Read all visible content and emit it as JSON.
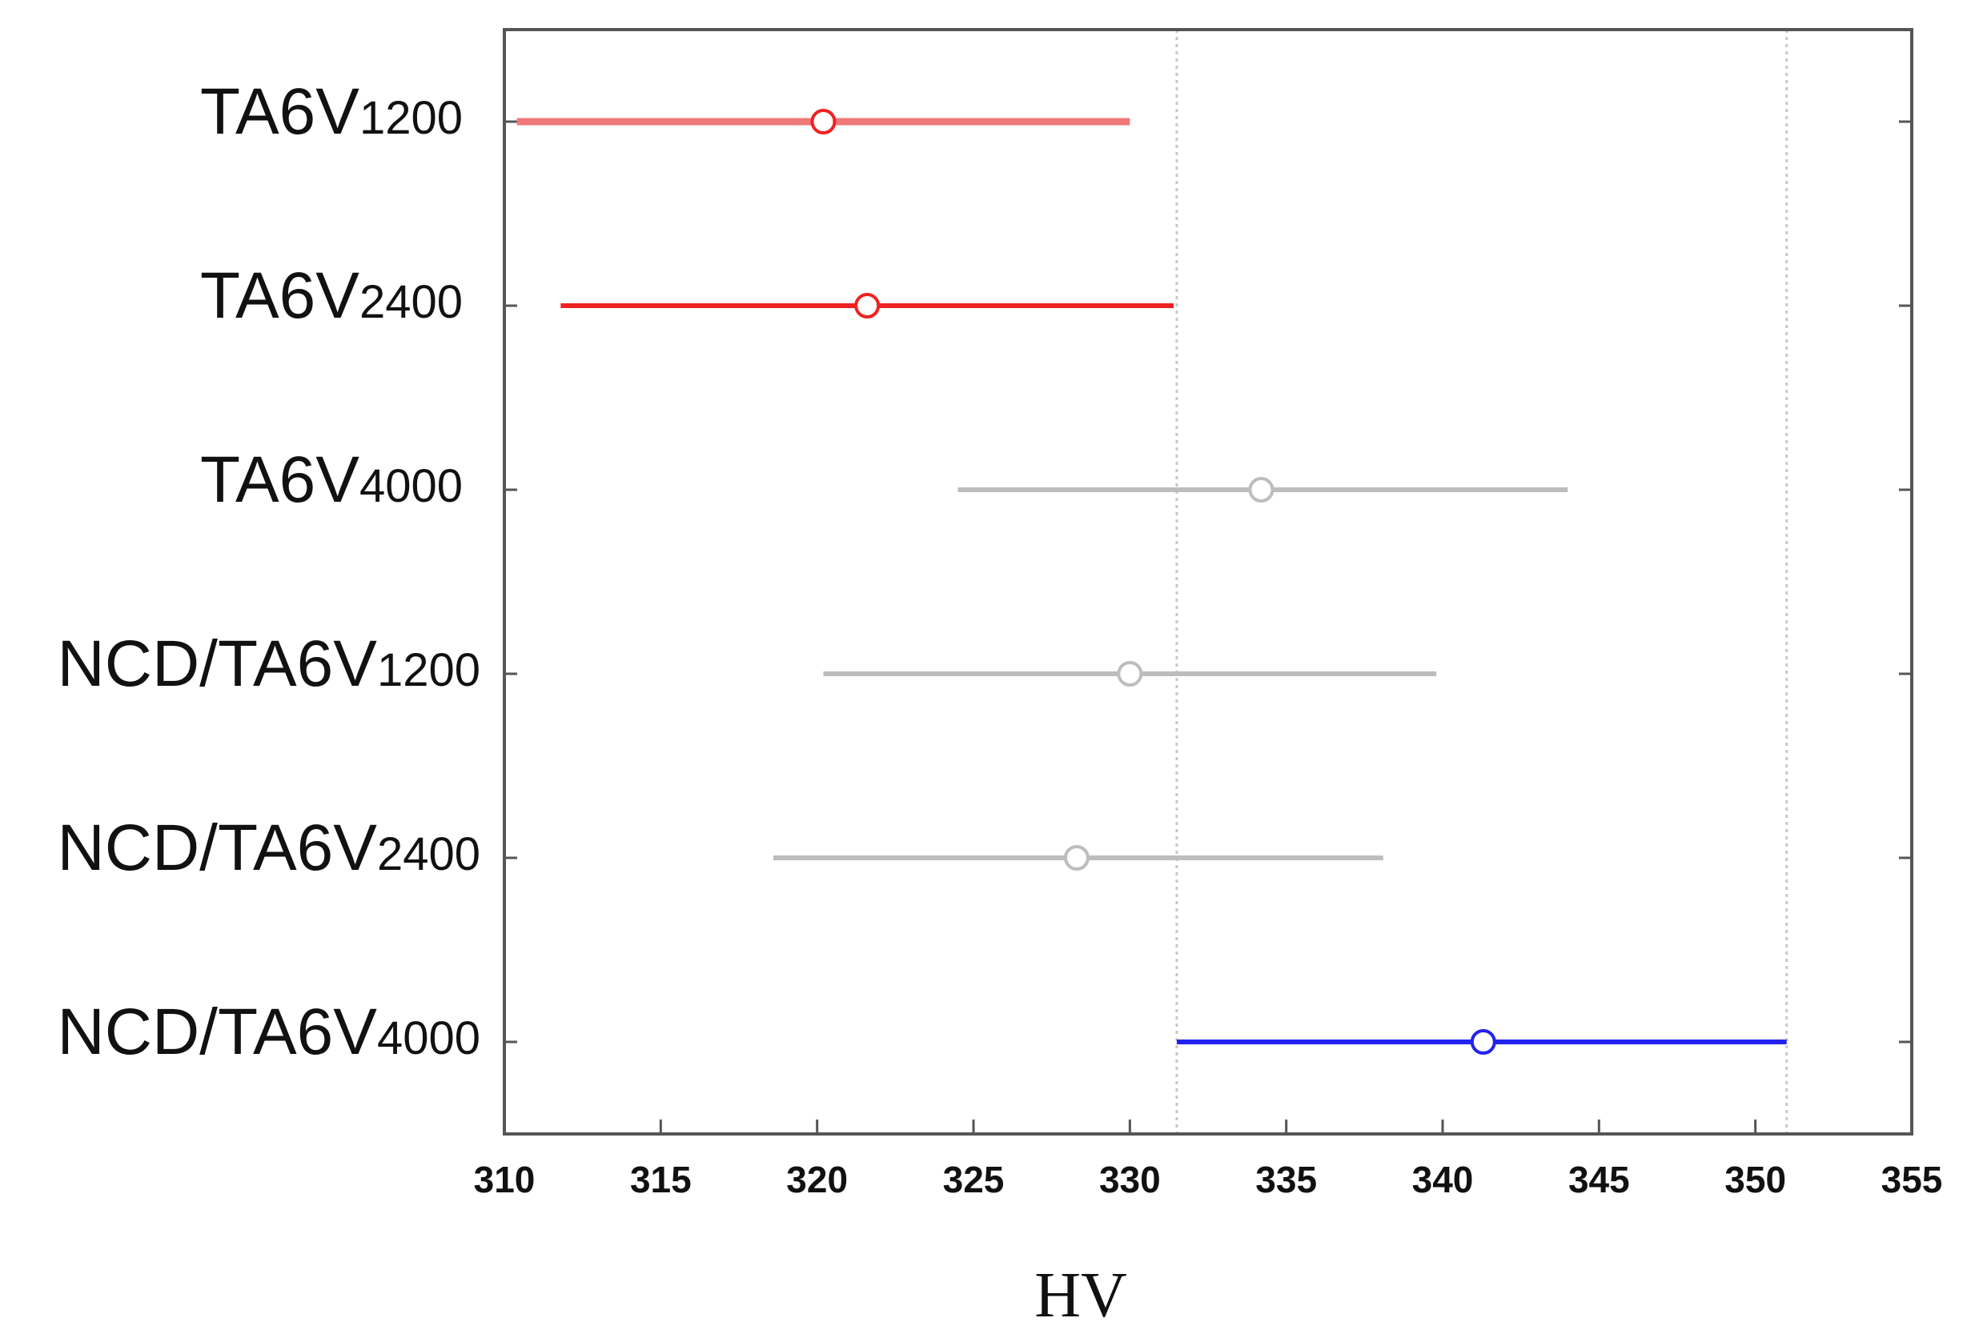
{
  "chart_data": {
    "type": "interval",
    "title": "",
    "xlabel": "HV",
    "ylabel": "",
    "xlim": [
      310,
      355
    ],
    "xticks": [
      310,
      315,
      320,
      325,
      330,
      335,
      340,
      345,
      350,
      355
    ],
    "xtick_labels": [
      "310",
      "315",
      "320",
      "325",
      "330",
      "335",
      "340",
      "345",
      "350",
      "355"
    ],
    "reference_lines": [
      331.5,
      351.0
    ],
    "grid": false,
    "legend": "none",
    "groups": [
      {
        "name": "TA6V",
        "sub": "1200",
        "mean": 320.2,
        "low": 310.4,
        "high": 330.0,
        "color": "#f07878"
      },
      {
        "name": "TA6V",
        "sub": "2400",
        "mean": 321.6,
        "low": 311.8,
        "high": 331.4,
        "color": "#ee2222"
      },
      {
        "name": "TA6V",
        "sub": "4000",
        "mean": 334.2,
        "low": 324.5,
        "high": 344.0,
        "color": "#bdbdbd"
      },
      {
        "name": "NCD/TA6V",
        "sub": "1200",
        "mean": 330.0,
        "low": 320.2,
        "high": 339.8,
        "color": "#bdbdbd"
      },
      {
        "name": "NCD/TA6V",
        "sub": "2400",
        "mean": 328.3,
        "low": 318.6,
        "high": 338.1,
        "color": "#bdbdbd"
      },
      {
        "name": "NCD/TA6V",
        "sub": "4000",
        "mean": 341.3,
        "low": 331.5,
        "high": 351.0,
        "color": "#2222ee"
      }
    ]
  }
}
